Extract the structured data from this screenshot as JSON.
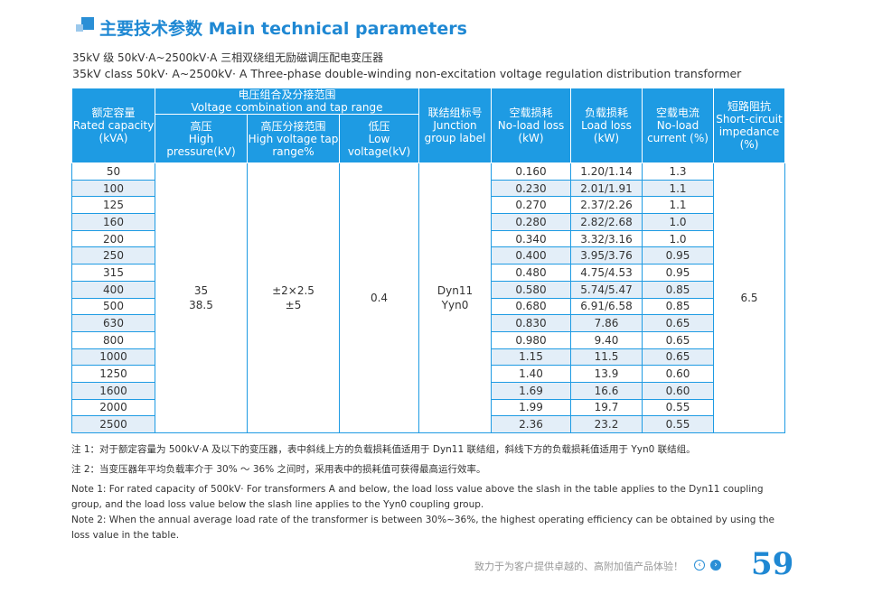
{
  "header": {
    "title": "主要技术参数 Main technical parameters",
    "subtitle_zh": "35kV 级 50kV·A~2500kV·A 三相双绕组无励磁调压配电变压器",
    "subtitle_en": "35kV class 50kV· A~2500kV· A Three-phase double-winding non-excitation voltage regulation distribution transformer"
  },
  "table": {
    "headers": {
      "capacity_zh": "额定容量",
      "capacity_en": "Rated capacity (kVA)",
      "voltage_group_zh": "电压组合及分接范围",
      "voltage_group_en": "Voltage combination and tap range",
      "hv_zh": "高压",
      "hv_en": "High pressure(kV)",
      "tap_zh": "高压分接范围",
      "tap_en": "High voltage tap range%",
      "lv_zh": "低压",
      "lv_en": "Low voltage(kV)",
      "group_zh": "联结组标号",
      "group_en": "Junction group label",
      "noload_loss_zh": "空载损耗",
      "noload_loss_en": "No-load loss (kW)",
      "load_loss_zh": "负载损耗",
      "load_loss_en": "Load loss (kW)",
      "noload_current_zh": "空载电流",
      "noload_current_en": "No-load current (%)",
      "impedance_zh": "短路阻抗",
      "impedance_en": "Short-circuit impedance (%)"
    },
    "merged": {
      "hv": [
        "35",
        "38.5"
      ],
      "tap": [
        "±2×2.5",
        "±5"
      ],
      "lv": "0.4",
      "group": [
        "Dyn11",
        "Yyn0"
      ],
      "impedance": "6.5"
    },
    "rows": [
      {
        "capacity": "50",
        "noload_loss": "0.160",
        "load_loss": "1.20/1.14",
        "noload_current": "1.3"
      },
      {
        "capacity": "100",
        "noload_loss": "0.230",
        "load_loss": "2.01/1.91",
        "noload_current": "1.1"
      },
      {
        "capacity": "125",
        "noload_loss": "0.270",
        "load_loss": "2.37/2.26",
        "noload_current": "1.1"
      },
      {
        "capacity": "160",
        "noload_loss": "0.280",
        "load_loss": "2.82/2.68",
        "noload_current": "1.0"
      },
      {
        "capacity": "200",
        "noload_loss": "0.340",
        "load_loss": "3.32/3.16",
        "noload_current": "1.0"
      },
      {
        "capacity": "250",
        "noload_loss": "0.400",
        "load_loss": "3.95/3.76",
        "noload_current": "0.95"
      },
      {
        "capacity": "315",
        "noload_loss": "0.480",
        "load_loss": "4.75/4.53",
        "noload_current": "0.95"
      },
      {
        "capacity": "400",
        "noload_loss": "0.580",
        "load_loss": "5.74/5.47",
        "noload_current": "0.85"
      },
      {
        "capacity": "500",
        "noload_loss": "0.680",
        "load_loss": "6.91/6.58",
        "noload_current": "0.85"
      },
      {
        "capacity": "630",
        "noload_loss": "0.830",
        "load_loss": "7.86",
        "noload_current": "0.65"
      },
      {
        "capacity": "800",
        "noload_loss": "0.980",
        "load_loss": "9.40",
        "noload_current": "0.65"
      },
      {
        "capacity": "1000",
        "noload_loss": "1.15",
        "load_loss": "11.5",
        "noload_current": "0.65"
      },
      {
        "capacity": "1250",
        "noload_loss": "1.40",
        "load_loss": "13.9",
        "noload_current": "0.60"
      },
      {
        "capacity": "1600",
        "noload_loss": "1.69",
        "load_loss": "16.6",
        "noload_current": "0.60"
      },
      {
        "capacity": "2000",
        "noload_loss": "1.99",
        "load_loss": "19.7",
        "noload_current": "0.55"
      },
      {
        "capacity": "2500",
        "noload_loss": "2.36",
        "load_loss": "23.2",
        "noload_current": "0.55"
      }
    ]
  },
  "notes": {
    "note1_zh": "注 1：对于额定容量为 500kV·A 及以下的变压器，表中斜线上方的负载损耗值适用于 Dyn11 联结组，斜线下方的负载损耗值适用于 Yyn0 联结组。",
    "note2_zh": "注 2：当变压器年平均负载率介于 30% ～ 36% 之间时，采用表中的损耗值可获得最高运行效率。",
    "note1_en": "Note 1: For rated capacity of 500kV· For transformers A and below, the load loss value above the slash in the table applies to the Dyn11 coupling group, and the load loss value below the slash line applies to the Yyn0 coupling group.",
    "note2_en": "Note 2: When the annual average load rate of the transformer is between 30%~36%, the highest operating efficiency can be obtained by using the loss value in the table."
  },
  "footer": {
    "slogan": "致力于为客户提供卓越的、高附加值产品体验！",
    "page_number": "59",
    "prev_icon": "‹",
    "next_icon": "›"
  },
  "colors": {
    "accent": "#1e9be3",
    "title": "#1f88d3",
    "row_alt": "#e3eef8"
  }
}
